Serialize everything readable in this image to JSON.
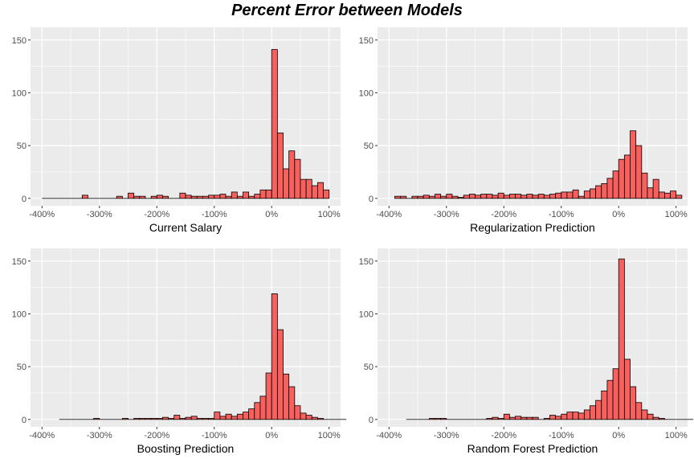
{
  "title": "Percent Error between Models",
  "colors": {
    "bar_fill": "#F8605E",
    "bar_stroke": "#000000",
    "panel_bg": "#EBEBEB",
    "grid": "#FFFFFF"
  },
  "chart_data": [
    {
      "type": "bar",
      "xlabel": "Current Salary",
      "ylabel": "",
      "xlim": [
        -420,
        120
      ],
      "ylim": [
        -7,
        162
      ],
      "x_ticks": [
        "-400%",
        "-300%",
        "-200%",
        "-100%",
        "0%",
        "100%"
      ],
      "x_tick_values": [
        -400,
        -300,
        -200,
        -100,
        0,
        100
      ],
      "y_ticks": [
        "0",
        "50",
        "100",
        "150"
      ],
      "y_tick_values": [
        0,
        50,
        100,
        150
      ],
      "bin_width": 10,
      "bins": [
        [
          -395,
          0
        ],
        [
          -385,
          0
        ],
        [
          -375,
          0
        ],
        [
          -365,
          0
        ],
        [
          -355,
          0
        ],
        [
          -345,
          0
        ],
        [
          -335,
          0
        ],
        [
          -325,
          3
        ],
        [
          -315,
          0
        ],
        [
          -305,
          0
        ],
        [
          -295,
          0
        ],
        [
          -285,
          0
        ],
        [
          -275,
          0
        ],
        [
          -265,
          2
        ],
        [
          -255,
          0
        ],
        [
          -245,
          5
        ],
        [
          -235,
          2
        ],
        [
          -225,
          2
        ],
        [
          -215,
          0
        ],
        [
          -205,
          2
        ],
        [
          -195,
          3
        ],
        [
          -185,
          2
        ],
        [
          -175,
          0
        ],
        [
          -165,
          0
        ],
        [
          -155,
          5
        ],
        [
          -145,
          3
        ],
        [
          -135,
          2
        ],
        [
          -125,
          2
        ],
        [
          -115,
          2
        ],
        [
          -105,
          3
        ],
        [
          -95,
          3
        ],
        [
          -85,
          4
        ],
        [
          -75,
          2
        ],
        [
          -65,
          6
        ],
        [
          -55,
          2
        ],
        [
          -45,
          6
        ],
        [
          -35,
          2
        ],
        [
          -25,
          4
        ],
        [
          -15,
          8
        ],
        [
          -5,
          8
        ],
        [
          5,
          141
        ],
        [
          15,
          62
        ],
        [
          25,
          28
        ],
        [
          35,
          45
        ],
        [
          45,
          37
        ],
        [
          55,
          18
        ],
        [
          65,
          18
        ],
        [
          75,
          12
        ],
        [
          85,
          15
        ],
        [
          95,
          8
        ]
      ]
    },
    {
      "type": "bar",
      "xlabel": "Regularization Prediction",
      "ylabel": "",
      "xlim": [
        -420,
        120
      ],
      "ylim": [
        -7,
        162
      ],
      "x_ticks": [
        "-400%",
        "-300%",
        "-200%",
        "-100%",
        "0%",
        "100%"
      ],
      "x_tick_values": [
        -400,
        -300,
        -200,
        -100,
        0,
        100
      ],
      "y_ticks": [
        "0",
        "50",
        "100",
        "150"
      ],
      "y_tick_values": [
        0,
        50,
        100,
        150
      ],
      "bin_width": 10,
      "bins": [
        [
          -385,
          2
        ],
        [
          -375,
          2
        ],
        [
          -365,
          0
        ],
        [
          -355,
          2
        ],
        [
          -345,
          2
        ],
        [
          -335,
          3
        ],
        [
          -325,
          2
        ],
        [
          -315,
          4
        ],
        [
          -305,
          2
        ],
        [
          -295,
          4
        ],
        [
          -285,
          2
        ],
        [
          -275,
          1
        ],
        [
          -265,
          3
        ],
        [
          -255,
          4
        ],
        [
          -245,
          3
        ],
        [
          -235,
          4
        ],
        [
          -225,
          4
        ],
        [
          -215,
          3
        ],
        [
          -205,
          5
        ],
        [
          -195,
          3
        ],
        [
          -185,
          4
        ],
        [
          -175,
          4
        ],
        [
          -165,
          3
        ],
        [
          -155,
          4
        ],
        [
          -145,
          3
        ],
        [
          -135,
          4
        ],
        [
          -125,
          3
        ],
        [
          -115,
          4
        ],
        [
          -105,
          5
        ],
        [
          -95,
          6
        ],
        [
          -85,
          6
        ],
        [
          -75,
          8
        ],
        [
          -65,
          2
        ],
        [
          -55,
          7
        ],
        [
          -45,
          9
        ],
        [
          -35,
          12
        ],
        [
          -25,
          14
        ],
        [
          -15,
          19
        ],
        [
          -5,
          26
        ],
        [
          5,
          37
        ],
        [
          15,
          41
        ],
        [
          25,
          64
        ],
        [
          35,
          50
        ],
        [
          45,
          24
        ],
        [
          55,
          10
        ],
        [
          65,
          18
        ],
        [
          75,
          6
        ],
        [
          85,
          5
        ],
        [
          95,
          7
        ],
        [
          105,
          3
        ]
      ]
    },
    {
      "type": "bar",
      "xlabel": "Boosting Prediction",
      "ylabel": "",
      "xlim": [
        -420,
        120
      ],
      "ylim": [
        -7,
        162
      ],
      "x_ticks": [
        "-400%",
        "-300%",
        "-200%",
        "-100%",
        "0%",
        "100%"
      ],
      "x_tick_values": [
        -400,
        -300,
        -200,
        -100,
        0,
        100
      ],
      "y_ticks": [
        "0",
        "50",
        "100",
        "150"
      ],
      "y_tick_values": [
        0,
        50,
        100,
        150
      ],
      "bin_width": 10,
      "bins": [
        [
          -395,
          0
        ],
        [
          -385,
          0
        ],
        [
          -375,
          0
        ],
        [
          -365,
          0
        ],
        [
          -355,
          0
        ],
        [
          -345,
          0
        ],
        [
          -335,
          1
        ],
        [
          -325,
          0
        ],
        [
          -315,
          0
        ],
        [
          -305,
          0
        ],
        [
          -295,
          0
        ],
        [
          -285,
          1
        ],
        [
          -275,
          0
        ],
        [
          -265,
          1
        ],
        [
          -255,
          1
        ],
        [
          -245,
          1
        ],
        [
          -235,
          1
        ],
        [
          -225,
          1
        ],
        [
          -215,
          2
        ],
        [
          -205,
          1
        ],
        [
          -195,
          4
        ],
        [
          -185,
          1
        ],
        [
          -175,
          2
        ],
        [
          -165,
          3
        ],
        [
          -155,
          1
        ],
        [
          -145,
          1
        ],
        [
          -135,
          1
        ],
        [
          -125,
          7
        ],
        [
          -115,
          3
        ],
        [
          -105,
          5
        ],
        [
          -95,
          3
        ],
        [
          -85,
          5
        ],
        [
          -75,
          7
        ],
        [
          -65,
          10
        ],
        [
          -55,
          16
        ],
        [
          -45,
          22
        ],
        [
          -35,
          44
        ],
        [
          -25,
          119
        ],
        [
          -15,
          85
        ],
        [
          -5,
          43
        ],
        [
          5,
          31
        ],
        [
          15,
          13
        ],
        [
          25,
          6
        ],
        [
          35,
          4
        ],
        [
          45,
          2
        ],
        [
          55,
          1
        ],
        [
          65,
          0
        ],
        [
          75,
          0
        ],
        [
          85,
          0
        ],
        [
          95,
          0
        ]
      ],
      "bin_offset": 30
    },
    {
      "type": "bar",
      "xlabel": "Random Forest Prediction",
      "ylabel": "",
      "xlim": [
        -420,
        120
      ],
      "ylim": [
        -7,
        162
      ],
      "x_ticks": [
        "-400%",
        "-300%",
        "-200%",
        "-100%",
        "0%",
        "100%"
      ],
      "x_tick_values": [
        -400,
        -300,
        -200,
        -100,
        0,
        100
      ],
      "y_ticks": [
        "0",
        "50",
        "100",
        "150"
      ],
      "y_tick_values": [
        0,
        50,
        100,
        150
      ],
      "bin_width": 10,
      "bins": [
        [
          -395,
          0
        ],
        [
          -385,
          0
        ],
        [
          -375,
          0
        ],
        [
          -365,
          0
        ],
        [
          -355,
          1
        ],
        [
          -345,
          1
        ],
        [
          -335,
          1
        ],
        [
          -325,
          0
        ],
        [
          -315,
          0
        ],
        [
          -305,
          0
        ],
        [
          -295,
          0
        ],
        [
          -285,
          0
        ],
        [
          -275,
          0
        ],
        [
          -265,
          0
        ],
        [
          -255,
          1
        ],
        [
          -245,
          2
        ],
        [
          -235,
          1
        ],
        [
          -225,
          5
        ],
        [
          -215,
          2
        ],
        [
          -205,
          3
        ],
        [
          -195,
          2
        ],
        [
          -185,
          2
        ],
        [
          -175,
          2
        ],
        [
          -165,
          0
        ],
        [
          -155,
          1
        ],
        [
          -145,
          4
        ],
        [
          -135,
          3
        ],
        [
          -125,
          5
        ],
        [
          -115,
          7
        ],
        [
          -105,
          7
        ],
        [
          -95,
          6
        ],
        [
          -85,
          9
        ],
        [
          -75,
          13
        ],
        [
          -65,
          18
        ],
        [
          -55,
          27
        ],
        [
          -45,
          37
        ],
        [
          -35,
          48
        ],
        [
          -25,
          152
        ],
        [
          -15,
          57
        ],
        [
          -5,
          31
        ],
        [
          5,
          16
        ],
        [
          15,
          9
        ],
        [
          25,
          5
        ],
        [
          35,
          2
        ],
        [
          45,
          1
        ],
        [
          55,
          0
        ],
        [
          65,
          0
        ],
        [
          75,
          0
        ],
        [
          85,
          0
        ],
        [
          95,
          0
        ]
      ],
      "bin_offset": 30
    }
  ]
}
